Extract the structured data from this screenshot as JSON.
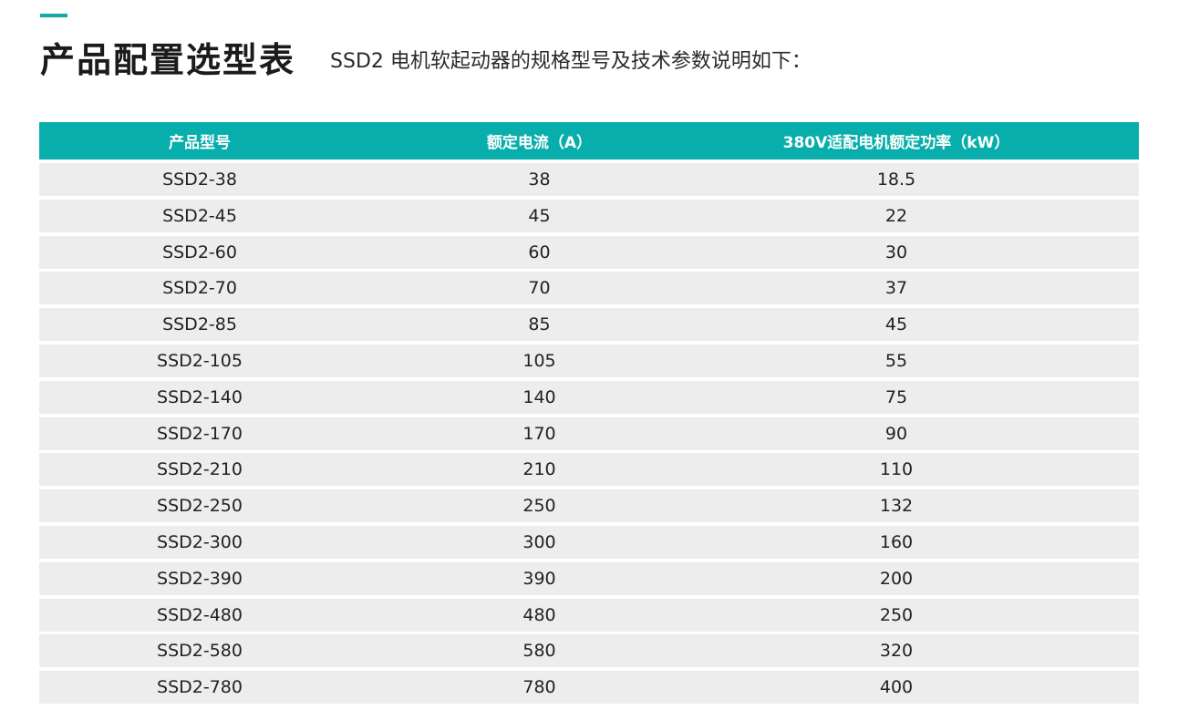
{
  "header": {
    "title": "产品配置选型表",
    "subtitle": "SSD2 电机软起动器的规格型号及技术参数说明如下："
  },
  "colors": {
    "accent": "#15a9a5",
    "table_header_bg": "#08aeab",
    "row_bg": "#ededed"
  },
  "table": {
    "columns": [
      "产品型号",
      "额定电流（A）",
      "380V适配电机额定功率（kW）"
    ],
    "rows": [
      [
        "SSD2-38",
        "38",
        "18.5"
      ],
      [
        "SSD2-45",
        "45",
        "22"
      ],
      [
        "SSD2-60",
        "60",
        "30"
      ],
      [
        "SSD2-70",
        "70",
        "37"
      ],
      [
        "SSD2-85",
        "85",
        "45"
      ],
      [
        "SSD2-105",
        "105",
        "55"
      ],
      [
        "SSD2-140",
        "140",
        "75"
      ],
      [
        "SSD2-170",
        "170",
        "90"
      ],
      [
        "SSD2-210",
        "210",
        "110"
      ],
      [
        "SSD2-250",
        "250",
        "132"
      ],
      [
        "SSD2-300",
        "300",
        "160"
      ],
      [
        "SSD2-390",
        "390",
        "200"
      ],
      [
        "SSD2-480",
        "480",
        "250"
      ],
      [
        "SSD2-580",
        "580",
        "320"
      ],
      [
        "SSD2-780",
        "780",
        "400"
      ]
    ]
  }
}
